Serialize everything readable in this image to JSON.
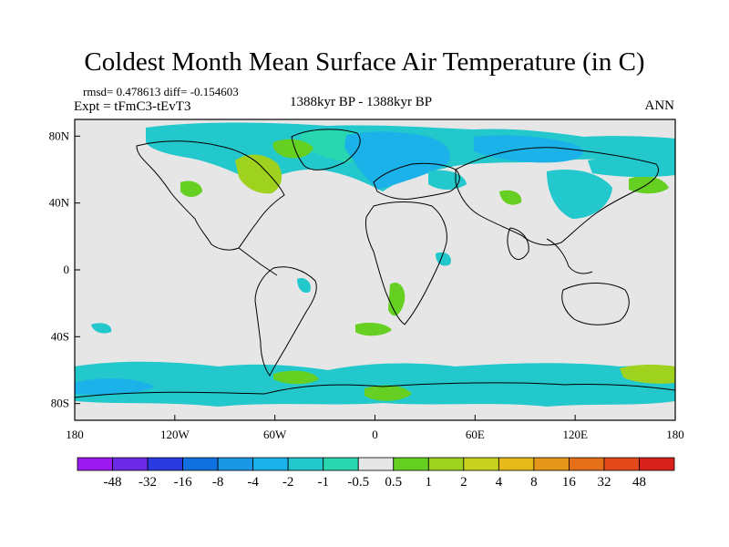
{
  "title": "Coldest Month Mean Surface Air Temperature (in C)",
  "stats": "rmsd= 0.478613  diff= -0.154603",
  "experiment": "Expt = tFmC3-tEvT3",
  "period": "1388kyr BP - 1388kyr BP",
  "season": "ANN",
  "axes": {
    "y_ticks": [
      "80N",
      "40N",
      "0",
      "40S",
      "80S"
    ],
    "y_values": [
      80,
      40,
      0,
      -40,
      -80
    ],
    "x_ticks": [
      "180",
      "120W",
      "60W",
      "0",
      "60E",
      "120E",
      "180"
    ],
    "x_values": [
      -180,
      -120,
      -60,
      0,
      60,
      120,
      180
    ]
  },
  "colorbar": {
    "labels": [
      "-48",
      "-32",
      "-16",
      "-8",
      "-4",
      "-2",
      "-1",
      "-0.5",
      "0.5",
      "1",
      "2",
      "4",
      "8",
      "16",
      "32",
      "48"
    ],
    "colors": [
      "#9a1af0",
      "#6a2ae8",
      "#2a3ae0",
      "#1070e0",
      "#1a98e6",
      "#1ab2e8",
      "#22c8cc",
      "#28d6b0",
      "#e6e6e6",
      "#66d022",
      "#9ed21e",
      "#c6d21e",
      "#e6ba1a",
      "#e6961a",
      "#e6701a",
      "#e2481a",
      "#d8201a"
    ]
  },
  "colors": {
    "background_field": "#e6e6e6",
    "coastline": "#000000"
  }
}
